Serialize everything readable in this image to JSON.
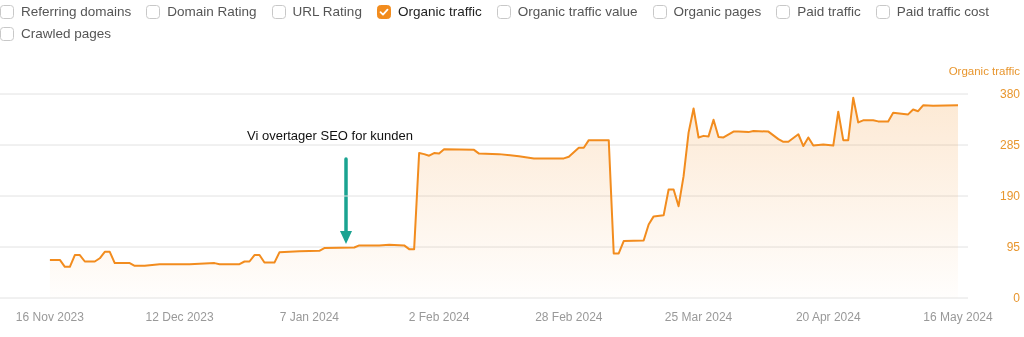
{
  "chart_data": {
    "type": "area",
    "ylabel": "Organic traffic",
    "x": [
      "2023-11-16",
      "2023-11-18",
      "2023-11-19",
      "2023-11-20",
      "2023-11-21",
      "2023-11-22",
      "2023-11-23",
      "2023-11-25",
      "2023-11-26",
      "2023-11-27",
      "2023-11-28",
      "2023-11-29",
      "2023-12-02",
      "2023-12-03",
      "2023-12-05",
      "2023-12-08",
      "2023-12-14",
      "2023-12-19",
      "2023-12-20",
      "2023-12-24",
      "2023-12-25",
      "2023-12-26",
      "2023-12-27",
      "2023-12-28",
      "2023-12-29",
      "2023-12-31",
      "2024-01-01",
      "2024-01-05",
      "2024-01-09",
      "2024-01-10",
      "2024-01-16",
      "2024-01-17",
      "2024-01-21",
      "2024-01-23",
      "2024-01-26",
      "2024-01-27",
      "2024-01-28",
      "2024-01-29",
      "2024-01-30",
      "2024-01-31",
      "2024-02-01",
      "2024-02-02",
      "2024-02-03",
      "2024-02-09",
      "2024-02-10",
      "2024-02-14",
      "2024-02-18",
      "2024-02-21",
      "2024-02-27",
      "2024-02-28",
      "2024-03-01",
      "2024-03-02",
      "2024-03-03",
      "2024-03-07",
      "2024-03-08",
      "2024-03-09",
      "2024-03-10",
      "2024-03-14",
      "2024-03-15",
      "2024-03-16",
      "2024-03-18",
      "2024-03-19",
      "2024-03-20",
      "2024-03-21",
      "2024-03-22",
      "2024-03-23",
      "2024-03-24",
      "2024-03-25",
      "2024-03-26",
      "2024-03-27",
      "2024-03-28",
      "2024-03-29",
      "2024-03-30",
      "2024-04-01",
      "2024-04-02",
      "2024-04-04",
      "2024-04-05",
      "2024-04-08",
      "2024-04-10",
      "2024-04-11",
      "2024-04-12",
      "2024-04-14",
      "2024-04-15",
      "2024-04-16",
      "2024-04-17",
      "2024-04-19",
      "2024-04-21",
      "2024-04-22",
      "2024-04-23",
      "2024-04-24",
      "2024-04-25",
      "2024-04-26",
      "2024-04-27",
      "2024-04-29",
      "2024-04-30",
      "2024-05-02",
      "2024-05-03",
      "2024-05-06",
      "2024-05-07",
      "2024-05-08",
      "2024-05-09",
      "2024-05-11",
      "2024-05-16"
    ],
    "series": [
      {
        "name": "Organic traffic",
        "color": "#f28c1e",
        "values": [
          71,
          71,
          58,
          58,
          80,
          80,
          68,
          68,
          74,
          86,
          86,
          65,
          65,
          60,
          60,
          63,
          63,
          65,
          63,
          63,
          68,
          68,
          80,
          80,
          66,
          66,
          85,
          87,
          88,
          93,
          94,
          98,
          98,
          99,
          98,
          91,
          91,
          270,
          268,
          265,
          270,
          269,
          277,
          276,
          269,
          268,
          264,
          260,
          260,
          263,
          280,
          280,
          294,
          294,
          83,
          83,
          106,
          107,
          137,
          152,
          154,
          202,
          202,
          171,
          227,
          308,
          353,
          299,
          302,
          301,
          332,
          300,
          299,
          310,
          310,
          309,
          311,
          310,
          296,
          291,
          291,
          305,
          283,
          299,
          284,
          286,
          284,
          347,
          294,
          294,
          373,
          327,
          331,
          331,
          329,
          329,
          345,
          342,
          351,
          348,
          359,
          358,
          359
        ]
      }
    ],
    "xlim": [
      "2023-11-06",
      "2024-05-18"
    ],
    "xticks": [
      {
        "value": "2023-11-16",
        "label": "16 Nov 2023"
      },
      {
        "value": "2023-12-12",
        "label": "12 Dec 2023"
      },
      {
        "value": "2024-01-07",
        "label": "7 Jan 2024"
      },
      {
        "value": "2024-02-02",
        "label": "2 Feb 2024"
      },
      {
        "value": "2024-02-28",
        "label": "28 Feb 2024"
      },
      {
        "value": "2024-03-25",
        "label": "25 Mar 2024"
      },
      {
        "value": "2024-04-20",
        "label": "20 Apr 2024"
      },
      {
        "value": "2024-05-16",
        "label": "16 May 2024"
      }
    ],
    "ylim": [
      0,
      380
    ],
    "yticks": [
      0,
      95,
      190,
      285,
      380
    ],
    "grid": "y",
    "legend": "top left",
    "annotations": [
      "Vi overtager SEO for kunden",
      "Referring domains",
      "Domain Rating",
      "URL Rating",
      "Organic traffic value",
      "Organic pages",
      "Paid traffic",
      "Paid traffic cost",
      "Crawled pages"
    ]
  }
}
